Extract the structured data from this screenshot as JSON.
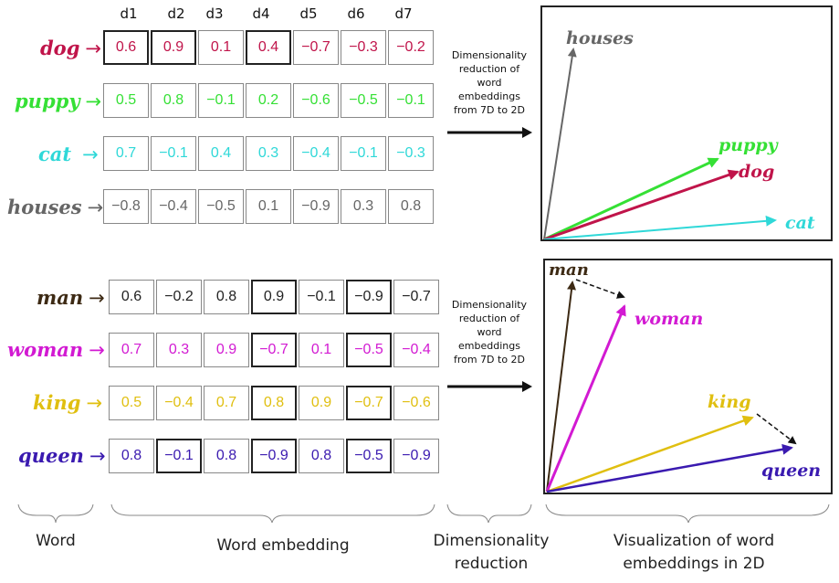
{
  "dims": [
    "d1",
    "d2",
    "d3",
    "d4",
    "d5",
    "d6",
    "d7"
  ],
  "top": {
    "rows": [
      {
        "word": "dog",
        "color": "#c0144a",
        "values": [
          "0.6",
          "0.9",
          "0.1",
          "0.4",
          "−0.7",
          "−0.3",
          "−0.2"
        ]
      },
      {
        "word": "puppy",
        "color": "#35e035",
        "values": [
          "0.5",
          "0.8",
          "−0.1",
          "0.2",
          "−0.6",
          "−0.5",
          "−0.1"
        ]
      },
      {
        "word": "cat",
        "color": "#2fd8d8",
        "values": [
          "0.7",
          "−0.1",
          "0.4",
          "0.3",
          "−0.4",
          "−0.1",
          "−0.3"
        ]
      },
      {
        "word": "houses",
        "color": "#666666",
        "values": [
          "−0.8",
          "−0.4",
          "−0.5",
          "0.1",
          "−0.9",
          "0.3",
          "0.8"
        ]
      }
    ],
    "reduction_text": [
      "Dimensionality",
      "reduction of",
      "word",
      "embeddings",
      "from 7D to 2D"
    ],
    "plot_labels": {
      "houses": "houses",
      "puppy": "puppy",
      "dog": "dog",
      "cat": "cat"
    }
  },
  "bottom": {
    "rows": [
      {
        "word": "man",
        "color": "#3d2a14",
        "values": [
          "0.6",
          "−0.2",
          "0.8",
          "0.9",
          "−0.1",
          "−0.9",
          "−0.7"
        ]
      },
      {
        "word": "woman",
        "color": "#d21ad2",
        "values": [
          "0.7",
          "0.3",
          "0.9",
          "−0.7",
          "0.1",
          "−0.5",
          "−0.4"
        ]
      },
      {
        "word": "king",
        "color": "#e0bf10",
        "values": [
          "0.5",
          "−0.4",
          "0.7",
          "0.8",
          "0.9",
          "−0.7",
          "−0.6"
        ]
      },
      {
        "word": "queen",
        "color": "#3a1ab0",
        "values": [
          "0.8",
          "−0.1",
          "0.8",
          "−0.9",
          "0.8",
          "−0.5",
          "−0.9"
        ]
      }
    ],
    "reduction_text": [
      "Dimensionality",
      "reduction of",
      "word",
      "embeddings",
      "from 7D to 2D"
    ],
    "plot_labels": {
      "man": "man",
      "woman": "woman",
      "king": "king",
      "queen": "queen"
    }
  },
  "arrow_glyph": "→",
  "bottom_labels": {
    "word": "Word",
    "embedding": "Word embedding",
    "reduction_1": "Dimensionality",
    "reduction_2": "reduction",
    "viz_1": "Visualization of word",
    "viz_2": "embeddings  in 2D"
  }
}
